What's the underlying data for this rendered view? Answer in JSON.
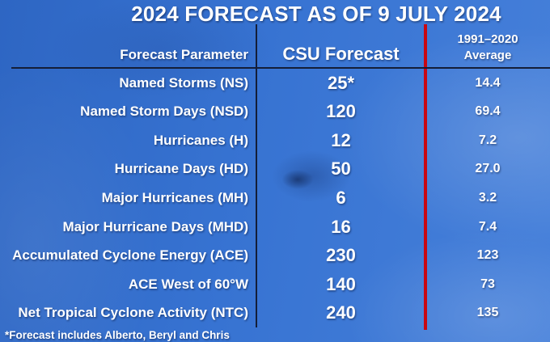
{
  "title": "2024 FORECAST AS OF 9 JULY 2024",
  "table": {
    "header": {
      "param": "Forecast Parameter",
      "forecast": "CSU Forecast",
      "average_line1": "1991–2020",
      "average_line2": "Average"
    },
    "rows": [
      {
        "parameter": "Named Storms (NS)",
        "csu_forecast": "25*",
        "average": "14.4"
      },
      {
        "parameter": "Named Storm Days (NSD)",
        "csu_forecast": "120",
        "average": "69.4"
      },
      {
        "parameter": "Hurricanes (H)",
        "csu_forecast": "12",
        "average": "7.2"
      },
      {
        "parameter": "Hurricane Days (HD)",
        "csu_forecast": "50",
        "average": "27.0"
      },
      {
        "parameter": "Major Hurricanes (MH)",
        "csu_forecast": "6",
        "average": "3.2"
      },
      {
        "parameter": "Major Hurricane Days (MHD)",
        "csu_forecast": "16",
        "average": "7.4"
      },
      {
        "parameter": "Accumulated Cyclone Energy (ACE)",
        "csu_forecast": "230",
        "average": "123"
      },
      {
        "parameter": "ACE West of 60°W",
        "csu_forecast": "140",
        "average": "73"
      },
      {
        "parameter": "Net Tropical Cyclone Activity (NTC)",
        "csu_forecast": "240",
        "average": "135"
      }
    ]
  },
  "footnote": "*Forecast includes Alberto, Beryl and Chris",
  "colors": {
    "background_blue": "#3470cd",
    "divider_dark": "#141e38",
    "divider_red": "#c90812",
    "text": "#ffffff"
  },
  "chart_data": {
    "type": "table",
    "title": "2024 FORECAST AS OF 9 JULY 2024",
    "columns": [
      "Forecast Parameter",
      "CSU Forecast",
      "1991–2020 Average"
    ],
    "rows": [
      [
        "Named Storms (NS)",
        "25*",
        "14.4"
      ],
      [
        "Named Storm Days (NSD)",
        "120",
        "69.4"
      ],
      [
        "Hurricanes (H)",
        "12",
        "7.2"
      ],
      [
        "Hurricane Days (HD)",
        "50",
        "27.0"
      ],
      [
        "Major Hurricanes (MH)",
        "6",
        "3.2"
      ],
      [
        "Major Hurricane Days (MHD)",
        "16",
        "7.4"
      ],
      [
        "Accumulated Cyclone Energy (ACE)",
        "230",
        "123"
      ],
      [
        "ACE West of 60°W",
        "140",
        "73"
      ],
      [
        "Net Tropical Cyclone Activity (NTC)",
        "240",
        "135"
      ]
    ],
    "footnote": "*Forecast includes Alberto, Beryl and Chris"
  }
}
